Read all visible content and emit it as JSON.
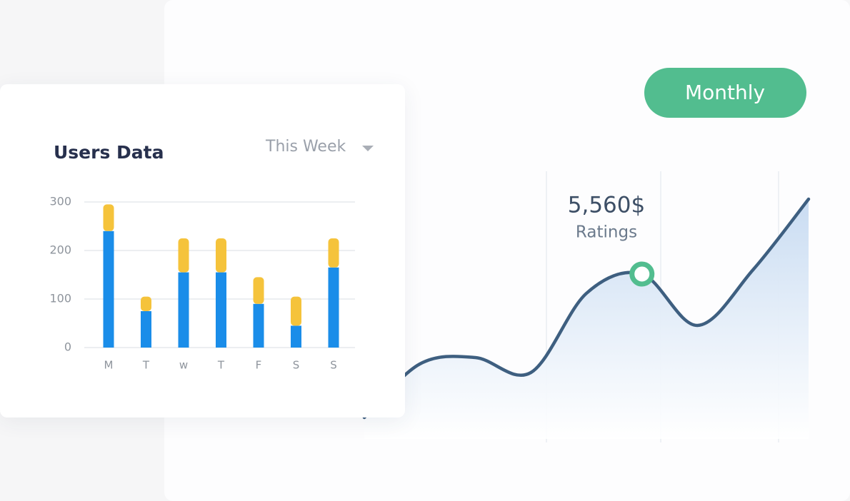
{
  "chart_data": [
    {
      "type": "bar",
      "stacked": true,
      "title": "Users Data",
      "period": "This Week",
      "categories": [
        "M",
        "T",
        "w",
        "T",
        "F",
        "S",
        "S"
      ],
      "series": [
        {
          "color": "#1a8de9",
          "values": [
            240,
            75,
            155,
            155,
            90,
            45,
            165
          ]
        },
        {
          "color": "#f5c33b",
          "values": [
            55,
            30,
            70,
            70,
            55,
            60,
            60
          ]
        }
      ],
      "ylim": [
        0,
        300
      ],
      "yticks": [
        0,
        100,
        200,
        300
      ],
      "grid": true
    },
    {
      "type": "line",
      "color": "#3e5f80",
      "area": true,
      "button": "Monthly",
      "annotations": [
        "5,560$",
        "Ratings"
      ],
      "marker_index": 5,
      "values": [
        5,
        30,
        33,
        26,
        63,
        72,
        48,
        74,
        107
      ]
    }
  ]
}
